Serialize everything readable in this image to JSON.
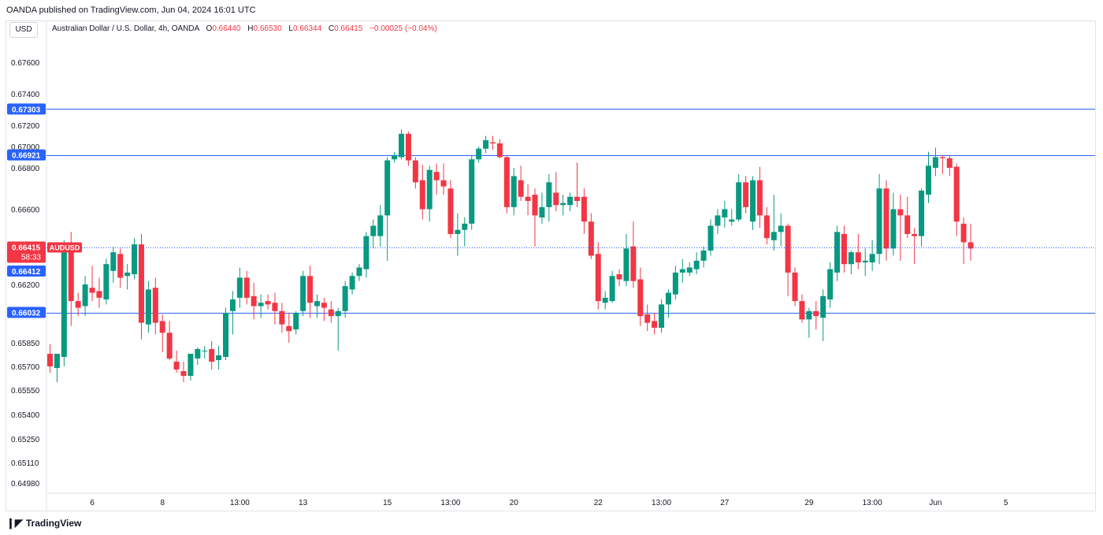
{
  "header": {
    "published": "OANDA published on TradingView.com, Jun 04, 2024 16:01 UTC",
    "currency": "USD"
  },
  "legend": {
    "title": "Australian Dollar / U.S. Dollar, 4h, OANDA",
    "o_label": "O",
    "o_value": "0.66440",
    "h_label": "H",
    "h_value": "0.66530",
    "l_label": "L",
    "l_value": "0.66344",
    "c_label": "C",
    "c_value": "0.66415",
    "change": "−0.00025 (−0.04%)"
  },
  "footer": {
    "brand": "TradingView"
  },
  "colors": {
    "up": "#089981",
    "down": "#f23645",
    "line": "#2962ff",
    "price_tag": "#f23645",
    "level_tag": "#2962ff"
  },
  "chart_data": {
    "type": "candlestick",
    "symbol": "AUDUSD",
    "timeframe": "4h",
    "y_axis_ticks": [
      0.676,
      0.674,
      0.672,
      0.67,
      0.668,
      0.666,
      0.664,
      0.662,
      0.6585,
      0.657,
      0.6555,
      0.654,
      0.6525,
      0.6511,
      0.6498
    ],
    "y_axis_tick_labels": [
      "0.67600",
      "0.67400",
      "0.67200",
      "0.67000",
      "0.66800",
      "0.66600",
      "0.66400",
      "0.66200",
      "0.65850",
      "0.65700",
      "0.65550",
      "0.65400",
      "0.65250",
      "0.65110",
      "0.64980"
    ],
    "x_axis_labels": [
      "6",
      "8",
      "13:00",
      "13",
      "15",
      "13:00",
      "20",
      "22",
      "13:00",
      "27",
      "29",
      "13:00",
      "Jun",
      "5"
    ],
    "x_axis_label_index": [
      6,
      16,
      27,
      36,
      48,
      57,
      66,
      78,
      87,
      96,
      108,
      117,
      126,
      136
    ],
    "horizontal_lines": [
      {
        "value": 0.67303,
        "label": "0.67303"
      },
      {
        "value": 0.66921,
        "label": "0.66921"
      },
      {
        "value": 0.66032,
        "label": "0.66032"
      }
    ],
    "last_price": {
      "value": 0.66415,
      "label": "0.66415",
      "countdown": "58:33",
      "symbol": "AUDUSD"
    },
    "prev_marker": {
      "value": 0.66412,
      "label": "0.66412"
    },
    "candles": [
      {
        "o": 0.6578,
        "h": 0.6584,
        "l": 0.6566,
        "c": 0.657
      },
      {
        "o": 0.6569,
        "h": 0.6577,
        "l": 0.656,
        "c": 0.6578
      },
      {
        "o": 0.6576,
        "h": 0.6645,
        "l": 0.657,
        "c": 0.664
      },
      {
        "o": 0.6643,
        "h": 0.6649,
        "l": 0.6595,
        "c": 0.661
      },
      {
        "o": 0.661,
        "h": 0.6615,
        "l": 0.6601,
        "c": 0.6606
      },
      {
        "o": 0.6607,
        "h": 0.6625,
        "l": 0.6601,
        "c": 0.662
      },
      {
        "o": 0.6618,
        "h": 0.6631,
        "l": 0.661,
        "c": 0.6615
      },
      {
        "o": 0.6616,
        "h": 0.6624,
        "l": 0.6606,
        "c": 0.6612
      },
      {
        "o": 0.6611,
        "h": 0.6635,
        "l": 0.6608,
        "c": 0.6632
      },
      {
        "o": 0.6628,
        "h": 0.6642,
        "l": 0.6621,
        "c": 0.6639
      },
      {
        "o": 0.6638,
        "h": 0.6641,
        "l": 0.6618,
        "c": 0.6624
      },
      {
        "o": 0.6625,
        "h": 0.6632,
        "l": 0.6617,
        "c": 0.6627
      },
      {
        "o": 0.6626,
        "h": 0.6646,
        "l": 0.6623,
        "c": 0.6643
      },
      {
        "o": 0.6643,
        "h": 0.6648,
        "l": 0.6587,
        "c": 0.6597
      },
      {
        "o": 0.6596,
        "h": 0.6622,
        "l": 0.6591,
        "c": 0.6617
      },
      {
        "o": 0.6618,
        "h": 0.6624,
        "l": 0.659,
        "c": 0.6597
      },
      {
        "o": 0.6598,
        "h": 0.6602,
        "l": 0.6579,
        "c": 0.6591
      },
      {
        "o": 0.6591,
        "h": 0.6598,
        "l": 0.6574,
        "c": 0.6575
      },
      {
        "o": 0.6573,
        "h": 0.658,
        "l": 0.6566,
        "c": 0.6568
      },
      {
        "o": 0.6567,
        "h": 0.6573,
        "l": 0.656,
        "c": 0.6564
      },
      {
        "o": 0.6564,
        "h": 0.6578,
        "l": 0.6561,
        "c": 0.6578
      },
      {
        "o": 0.6575,
        "h": 0.6582,
        "l": 0.6571,
        "c": 0.6581
      },
      {
        "o": 0.658,
        "h": 0.6583,
        "l": 0.6575,
        "c": 0.658
      },
      {
        "o": 0.6581,
        "h": 0.6586,
        "l": 0.6568,
        "c": 0.6573
      },
      {
        "o": 0.6574,
        "h": 0.6583,
        "l": 0.6568,
        "c": 0.6577
      },
      {
        "o": 0.6576,
        "h": 0.6606,
        "l": 0.6574,
        "c": 0.6603
      },
      {
        "o": 0.6604,
        "h": 0.6616,
        "l": 0.659,
        "c": 0.6611
      },
      {
        "o": 0.6612,
        "h": 0.663,
        "l": 0.6606,
        "c": 0.6624
      },
      {
        "o": 0.6624,
        "h": 0.6628,
        "l": 0.6608,
        "c": 0.6612
      },
      {
        "o": 0.6613,
        "h": 0.6621,
        "l": 0.6599,
        "c": 0.6607
      },
      {
        "o": 0.6607,
        "h": 0.6614,
        "l": 0.66,
        "c": 0.6609
      },
      {
        "o": 0.661,
        "h": 0.6614,
        "l": 0.6605,
        "c": 0.6608
      },
      {
        "o": 0.6609,
        "h": 0.6615,
        "l": 0.6596,
        "c": 0.6604
      },
      {
        "o": 0.6604,
        "h": 0.6609,
        "l": 0.6591,
        "c": 0.6596
      },
      {
        "o": 0.6595,
        "h": 0.6603,
        "l": 0.6585,
        "c": 0.6592
      },
      {
        "o": 0.6593,
        "h": 0.6604,
        "l": 0.659,
        "c": 0.6603
      },
      {
        "o": 0.6604,
        "h": 0.6628,
        "l": 0.6601,
        "c": 0.6625
      },
      {
        "o": 0.6625,
        "h": 0.6631,
        "l": 0.66,
        "c": 0.6609
      },
      {
        "o": 0.6607,
        "h": 0.6614,
        "l": 0.66,
        "c": 0.661
      },
      {
        "o": 0.6609,
        "h": 0.6612,
        "l": 0.6598,
        "c": 0.6606
      },
      {
        "o": 0.6605,
        "h": 0.661,
        "l": 0.6597,
        "c": 0.6601
      },
      {
        "o": 0.6601,
        "h": 0.6606,
        "l": 0.658,
        "c": 0.6604
      },
      {
        "o": 0.6604,
        "h": 0.6622,
        "l": 0.66,
        "c": 0.6619
      },
      {
        "o": 0.6617,
        "h": 0.6627,
        "l": 0.6614,
        "c": 0.6625
      },
      {
        "o": 0.6625,
        "h": 0.6632,
        "l": 0.6622,
        "c": 0.663
      },
      {
        "o": 0.6629,
        "h": 0.6649,
        "l": 0.6624,
        "c": 0.6647
      },
      {
        "o": 0.6647,
        "h": 0.6655,
        "l": 0.6641,
        "c": 0.6652
      },
      {
        "o": 0.6647,
        "h": 0.6662,
        "l": 0.6642,
        "c": 0.6657
      },
      {
        "o": 0.6657,
        "h": 0.669,
        "l": 0.6634,
        "c": 0.6687
      },
      {
        "o": 0.6688,
        "h": 0.6695,
        "l": 0.6685,
        "c": 0.6692
      },
      {
        "o": 0.669,
        "h": 0.6716,
        "l": 0.6688,
        "c": 0.6712
      },
      {
        "o": 0.6712,
        "h": 0.6714,
        "l": 0.6682,
        "c": 0.6687
      },
      {
        "o": 0.6687,
        "h": 0.669,
        "l": 0.667,
        "c": 0.6673
      },
      {
        "o": 0.6674,
        "h": 0.6683,
        "l": 0.6655,
        "c": 0.666
      },
      {
        "o": 0.666,
        "h": 0.6682,
        "l": 0.6654,
        "c": 0.6679
      },
      {
        "o": 0.6678,
        "h": 0.6684,
        "l": 0.6667,
        "c": 0.6674
      },
      {
        "o": 0.6674,
        "h": 0.6684,
        "l": 0.6667,
        "c": 0.6671
      },
      {
        "o": 0.667,
        "h": 0.6674,
        "l": 0.6646,
        "c": 0.6648
      },
      {
        "o": 0.6648,
        "h": 0.6658,
        "l": 0.6637,
        "c": 0.665
      },
      {
        "o": 0.665,
        "h": 0.6656,
        "l": 0.6642,
        "c": 0.6653
      },
      {
        "o": 0.6653,
        "h": 0.6691,
        "l": 0.665,
        "c": 0.6688
      },
      {
        "o": 0.6688,
        "h": 0.67,
        "l": 0.6685,
        "c": 0.6698
      },
      {
        "o": 0.6698,
        "h": 0.671,
        "l": 0.6694,
        "c": 0.6706
      },
      {
        "o": 0.6704,
        "h": 0.671,
        "l": 0.6697,
        "c": 0.6703
      },
      {
        "o": 0.6703,
        "h": 0.6707,
        "l": 0.6689,
        "c": 0.669
      },
      {
        "o": 0.669,
        "h": 0.6691,
        "l": 0.6658,
        "c": 0.6661
      },
      {
        "o": 0.6661,
        "h": 0.668,
        "l": 0.6657,
        "c": 0.6676
      },
      {
        "o": 0.6674,
        "h": 0.6682,
        "l": 0.6664,
        "c": 0.6666
      },
      {
        "o": 0.6666,
        "h": 0.6672,
        "l": 0.6657,
        "c": 0.6664
      },
      {
        "o": 0.6667,
        "h": 0.667,
        "l": 0.6642,
        "c": 0.6657
      },
      {
        "o": 0.6656,
        "h": 0.6668,
        "l": 0.6653,
        "c": 0.6661
      },
      {
        "o": 0.6661,
        "h": 0.6677,
        "l": 0.6654,
        "c": 0.6673
      },
      {
        "o": 0.6668,
        "h": 0.6678,
        "l": 0.6659,
        "c": 0.6662
      },
      {
        "o": 0.6662,
        "h": 0.6667,
        "l": 0.6657,
        "c": 0.6663
      },
      {
        "o": 0.6662,
        "h": 0.6668,
        "l": 0.6659,
        "c": 0.6666
      },
      {
        "o": 0.6666,
        "h": 0.6685,
        "l": 0.6661,
        "c": 0.6664
      },
      {
        "o": 0.6666,
        "h": 0.667,
        "l": 0.6648,
        "c": 0.6654
      },
      {
        "o": 0.6654,
        "h": 0.6658,
        "l": 0.6635,
        "c": 0.6637
      },
      {
        "o": 0.6638,
        "h": 0.6644,
        "l": 0.6605,
        "c": 0.661
      },
      {
        "o": 0.6609,
        "h": 0.6616,
        "l": 0.6605,
        "c": 0.6612
      },
      {
        "o": 0.661,
        "h": 0.6628,
        "l": 0.6609,
        "c": 0.6625
      },
      {
        "o": 0.6626,
        "h": 0.6629,
        "l": 0.6619,
        "c": 0.6623
      },
      {
        "o": 0.6622,
        "h": 0.6648,
        "l": 0.6619,
        "c": 0.6641
      },
      {
        "o": 0.6642,
        "h": 0.6654,
        "l": 0.6618,
        "c": 0.6622
      },
      {
        "o": 0.6623,
        "h": 0.663,
        "l": 0.6595,
        "c": 0.6601
      },
      {
        "o": 0.6602,
        "h": 0.6608,
        "l": 0.6592,
        "c": 0.6597
      },
      {
        "o": 0.6598,
        "h": 0.6603,
        "l": 0.659,
        "c": 0.6594
      },
      {
        "o": 0.6594,
        "h": 0.6611,
        "l": 0.6591,
        "c": 0.6608
      },
      {
        "o": 0.6608,
        "h": 0.6617,
        "l": 0.66,
        "c": 0.6615
      },
      {
        "o": 0.6614,
        "h": 0.6631,
        "l": 0.6611,
        "c": 0.6627
      },
      {
        "o": 0.6627,
        "h": 0.6635,
        "l": 0.6621,
        "c": 0.6629
      },
      {
        "o": 0.6627,
        "h": 0.6633,
        "l": 0.6625,
        "c": 0.663
      },
      {
        "o": 0.6629,
        "h": 0.6639,
        "l": 0.6626,
        "c": 0.6634
      },
      {
        "o": 0.6634,
        "h": 0.6642,
        "l": 0.663,
        "c": 0.664
      },
      {
        "o": 0.664,
        "h": 0.6655,
        "l": 0.6637,
        "c": 0.6652
      },
      {
        "o": 0.6652,
        "h": 0.666,
        "l": 0.6648,
        "c": 0.6657
      },
      {
        "o": 0.6656,
        "h": 0.6664,
        "l": 0.6651,
        "c": 0.666
      },
      {
        "o": 0.6654,
        "h": 0.666,
        "l": 0.6652,
        "c": 0.6655
      },
      {
        "o": 0.6655,
        "h": 0.6677,
        "l": 0.6654,
        "c": 0.6673
      },
      {
        "o": 0.6673,
        "h": 0.6676,
        "l": 0.6658,
        "c": 0.6661
      },
      {
        "o": 0.6654,
        "h": 0.6676,
        "l": 0.665,
        "c": 0.6674
      },
      {
        "o": 0.6674,
        "h": 0.6681,
        "l": 0.6651,
        "c": 0.6657
      },
      {
        "o": 0.6657,
        "h": 0.6661,
        "l": 0.6643,
        "c": 0.6646
      },
      {
        "o": 0.6645,
        "h": 0.6667,
        "l": 0.664,
        "c": 0.6649
      },
      {
        "o": 0.6649,
        "h": 0.6658,
        "l": 0.6642,
        "c": 0.6652
      },
      {
        "o": 0.6652,
        "h": 0.6653,
        "l": 0.6613,
        "c": 0.6627
      },
      {
        "o": 0.6627,
        "h": 0.663,
        "l": 0.6607,
        "c": 0.661
      },
      {
        "o": 0.661,
        "h": 0.6614,
        "l": 0.6597,
        "c": 0.6599
      },
      {
        "o": 0.6599,
        "h": 0.6606,
        "l": 0.6588,
        "c": 0.6604
      },
      {
        "o": 0.6604,
        "h": 0.661,
        "l": 0.6593,
        "c": 0.6601
      },
      {
        "o": 0.66,
        "h": 0.6617,
        "l": 0.6586,
        "c": 0.6613
      },
      {
        "o": 0.6611,
        "h": 0.6633,
        "l": 0.6606,
        "c": 0.6629
      },
      {
        "o": 0.6627,
        "h": 0.6652,
        "l": 0.6622,
        "c": 0.6649
      },
      {
        "o": 0.6648,
        "h": 0.6652,
        "l": 0.6627,
        "c": 0.6632
      },
      {
        "o": 0.6632,
        "h": 0.664,
        "l": 0.6626,
        "c": 0.6639
      },
      {
        "o": 0.6639,
        "h": 0.6648,
        "l": 0.6629,
        "c": 0.6633
      },
      {
        "o": 0.6633,
        "h": 0.6641,
        "l": 0.6625,
        "c": 0.6634
      },
      {
        "o": 0.6633,
        "h": 0.6645,
        "l": 0.6628,
        "c": 0.6638
      },
      {
        "o": 0.6638,
        "h": 0.6677,
        "l": 0.6632,
        "c": 0.667
      },
      {
        "o": 0.667,
        "h": 0.6674,
        "l": 0.6634,
        "c": 0.6641
      },
      {
        "o": 0.6641,
        "h": 0.6668,
        "l": 0.6637,
        "c": 0.666
      },
      {
        "o": 0.666,
        "h": 0.6667,
        "l": 0.6634,
        "c": 0.6657
      },
      {
        "o": 0.6657,
        "h": 0.6666,
        "l": 0.6646,
        "c": 0.6648
      },
      {
        "o": 0.6648,
        "h": 0.6651,
        "l": 0.6632,
        "c": 0.6647
      },
      {
        "o": 0.6647,
        "h": 0.667,
        "l": 0.6642,
        "c": 0.6669
      },
      {
        "o": 0.6667,
        "h": 0.6695,
        "l": 0.6663,
        "c": 0.6682
      },
      {
        "o": 0.668,
        "h": 0.6699,
        "l": 0.6676,
        "c": 0.669
      },
      {
        "o": 0.669,
        "h": 0.6692,
        "l": 0.6677,
        "c": 0.6689
      },
      {
        "o": 0.6689,
        "h": 0.6692,
        "l": 0.6676,
        "c": 0.668
      },
      {
        "o": 0.6681,
        "h": 0.6684,
        "l": 0.6647,
        "c": 0.6654
      },
      {
        "o": 0.6653,
        "h": 0.6656,
        "l": 0.6632,
        "c": 0.6644
      },
      {
        "o": 0.6644,
        "h": 0.6653,
        "l": 0.6634,
        "c": 0.6641
      }
    ]
  }
}
